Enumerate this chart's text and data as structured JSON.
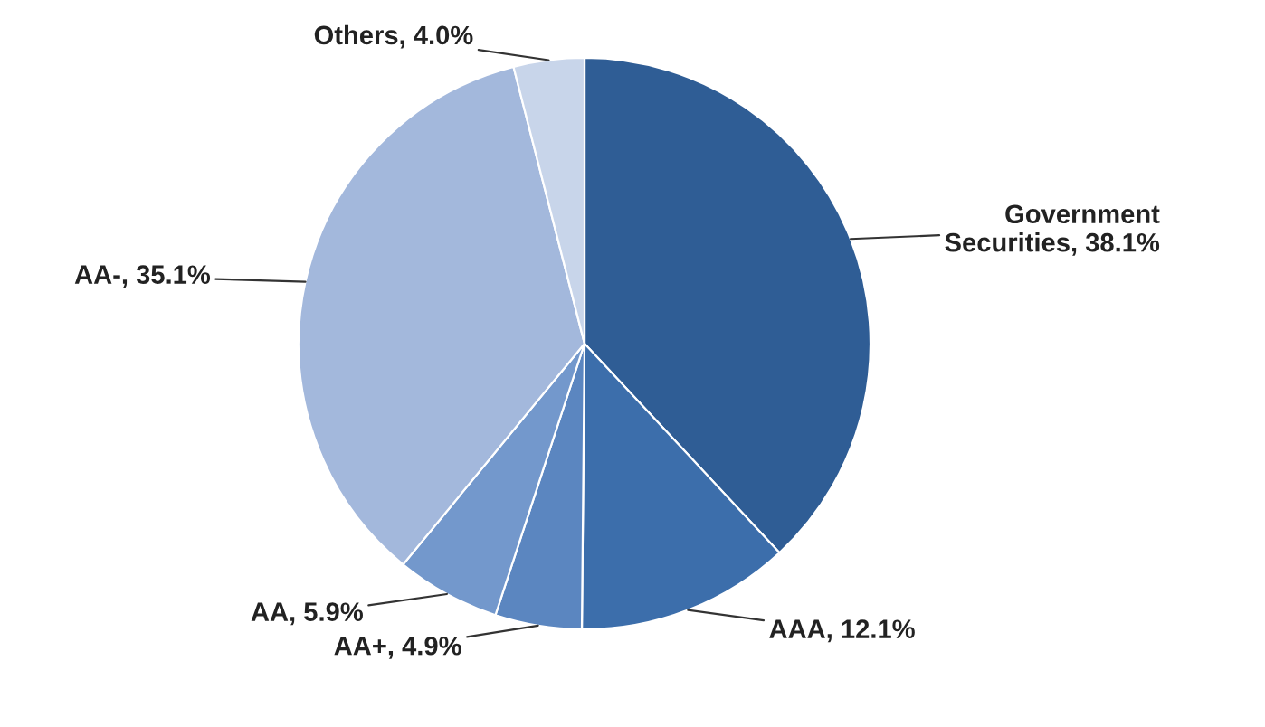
{
  "chart_data": {
    "type": "pie",
    "categories": [
      "Government\nSecurities",
      "AAA",
      "AA+",
      "AA",
      "AA-",
      "Others"
    ],
    "values": [
      38.1,
      12.1,
      4.9,
      5.9,
      35.1,
      4.0
    ],
    "colors": [
      "#2f5d95",
      "#3c6eab",
      "#5b86c0",
      "#7398cc",
      "#a3b8dc",
      "#c8d5ea"
    ],
    "value_labels": [
      "38.1%",
      "12.1%",
      "4.9%",
      "5.9%",
      "35.1%",
      "4.0%"
    ]
  }
}
